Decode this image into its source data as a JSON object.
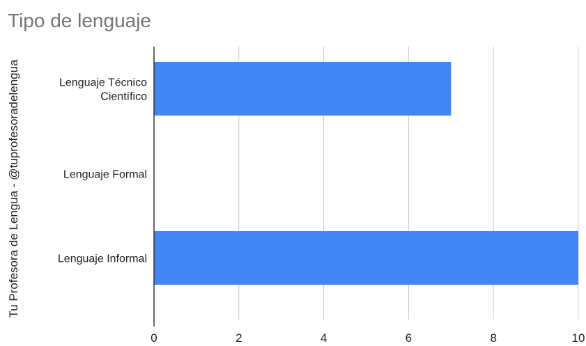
{
  "chart_data": {
    "type": "bar",
    "orientation": "horizontal",
    "title": "Tipo de lenguaje",
    "ylabel": "Tu Profesora de Lengua - @tuprofesoradelengua",
    "xlabel": "",
    "categories": [
      [
        "Lenguaje Técnico",
        "Científico"
      ],
      [
        "Lenguaje Formal"
      ],
      [
        "Lenguaje Informal"
      ]
    ],
    "values": [
      7,
      0,
      10
    ],
    "xlim": [
      0,
      10
    ],
    "xticks": [
      "0",
      "2",
      "4",
      "6",
      "8",
      "10"
    ],
    "grid": true,
    "colors": {
      "bar": "#4285f4",
      "grid": "#cccccc",
      "axis": "#333333",
      "title": "#757575",
      "text": "#222222"
    }
  }
}
